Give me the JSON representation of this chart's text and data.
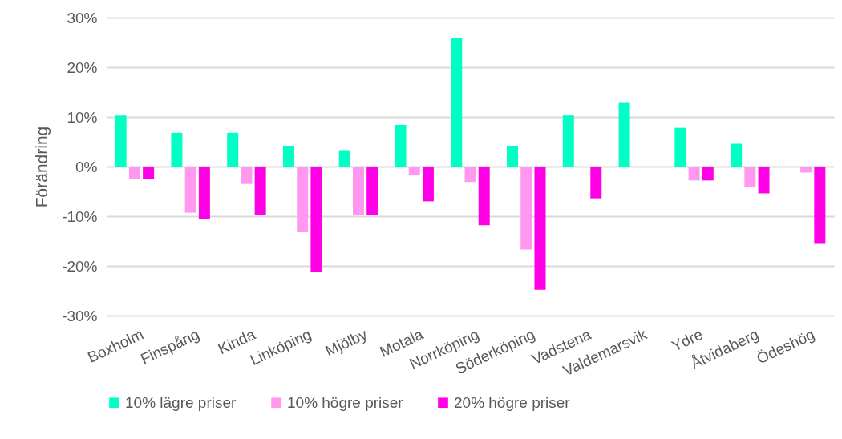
{
  "chart_data": {
    "type": "bar",
    "ylabel": "Förändring",
    "categories": [
      "Boxholm",
      "Finspång",
      "Kinda",
      "Linköping",
      "Mjölby",
      "Motala",
      "Norrköping",
      "Söderköping",
      "Vadstena",
      "Valdemarsvik",
      "Ydre",
      "Åtvidaberg",
      "Ödeshög"
    ],
    "series": [
      {
        "name": "10% lägre priser",
        "color": "#00ffc5",
        "values": [
          10.3,
          6.8,
          6.8,
          4.2,
          3.3,
          8.4,
          25.9,
          4.2,
          10.3,
          13.0,
          7.8,
          4.6,
          null
        ]
      },
      {
        "name": "10% högre priser",
        "color": "#ff99f0",
        "values": [
          -2.5,
          -9.3,
          -3.5,
          -13.2,
          -9.8,
          -1.8,
          -3.1,
          -16.7,
          null,
          null,
          -2.8,
          -4.1,
          -1.2
        ]
      },
      {
        "name": "20% högre priser",
        "color": "#ff00e6",
        "values": [
          -2.5,
          -10.5,
          -9.8,
          -21.2,
          -9.8,
          -7.0,
          -11.8,
          -24.8,
          -6.4,
          null,
          -2.8,
          -5.4,
          -15.4
        ]
      }
    ],
    "ylim": [
      -30,
      30
    ],
    "yticks": [
      {
        "value": -30,
        "label": "-30%"
      },
      {
        "value": -20,
        "label": "-20%"
      },
      {
        "value": -10,
        "label": "-10%"
      },
      {
        "value": 0,
        "label": "0%"
      },
      {
        "value": 10,
        "label": "10%"
      },
      {
        "value": 20,
        "label": "20%"
      },
      {
        "value": 30,
        "label": "30%"
      }
    ],
    "grid": "y",
    "legend": "bottom"
  }
}
